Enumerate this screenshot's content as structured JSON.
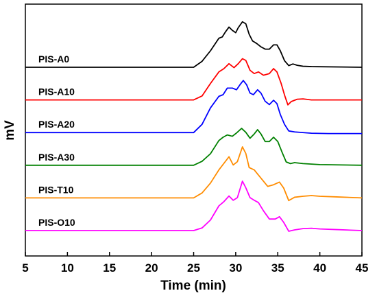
{
  "chart_data": {
    "type": "line",
    "xlabel": "Time (min)",
    "ylabel": "mV",
    "xlim": [
      5,
      45
    ],
    "x_ticks": [
      5,
      10,
      15,
      20,
      25,
      30,
      35,
      40,
      45
    ],
    "y_ticks_shown": false,
    "grid": false,
    "legend": "inline labels left of each trace",
    "series": [
      {
        "name": "PIS-A0",
        "color": "#000000",
        "points": [
          [
            5,
            0.0
          ],
          [
            25,
            0.0
          ],
          [
            26,
            0.18
          ],
          [
            27,
            0.5
          ],
          [
            28,
            0.88
          ],
          [
            28.4,
            0.92
          ],
          [
            28.8,
            1.08
          ],
          [
            29.2,
            1.22
          ],
          [
            29.6,
            1.12
          ],
          [
            30.0,
            1.05
          ],
          [
            30.3,
            1.2
          ],
          [
            30.8,
            1.38
          ],
          [
            31.2,
            1.32
          ],
          [
            31.6,
            1.0
          ],
          [
            32.0,
            0.8
          ],
          [
            32.5,
            0.72
          ],
          [
            33.0,
            0.62
          ],
          [
            33.5,
            0.55
          ],
          [
            34.0,
            0.55
          ],
          [
            34.5,
            0.68
          ],
          [
            34.9,
            0.68
          ],
          [
            35.3,
            0.5
          ],
          [
            35.8,
            0.2
          ],
          [
            36.3,
            0.05
          ],
          [
            36.8,
            0.1
          ],
          [
            37.3,
            0.06
          ],
          [
            38,
            0.03
          ],
          [
            39,
            0.02
          ],
          [
            45,
            0.0
          ]
        ]
      },
      {
        "name": "PIS-A10",
        "color": "#ff0000",
        "points": [
          [
            5,
            0.0
          ],
          [
            25,
            0.0
          ],
          [
            26,
            0.12
          ],
          [
            27,
            0.5
          ],
          [
            28,
            0.85
          ],
          [
            28.6,
            0.95
          ],
          [
            29.2,
            1.1
          ],
          [
            29.8,
            0.98
          ],
          [
            30.3,
            1.1
          ],
          [
            30.8,
            1.25
          ],
          [
            31.2,
            1.2
          ],
          [
            31.7,
            0.9
          ],
          [
            32.2,
            0.8
          ],
          [
            32.7,
            0.85
          ],
          [
            33.3,
            0.75
          ],
          [
            34.0,
            0.8
          ],
          [
            34.5,
            0.95
          ],
          [
            34.9,
            0.85
          ],
          [
            35.4,
            0.5
          ],
          [
            35.8,
            0.15
          ],
          [
            36.2,
            -0.15
          ],
          [
            36.6,
            -0.05
          ],
          [
            37.3,
            0.02
          ],
          [
            38,
            0.03
          ],
          [
            39,
            0.0
          ],
          [
            45,
            0.0
          ]
        ]
      },
      {
        "name": "PIS-A20",
        "color": "#0000ff",
        "points": [
          [
            5,
            0.0
          ],
          [
            25,
            0.0
          ],
          [
            26,
            0.25
          ],
          [
            27,
            0.75
          ],
          [
            28,
            1.1
          ],
          [
            28.5,
            1.15
          ],
          [
            29.0,
            1.35
          ],
          [
            29.6,
            1.35
          ],
          [
            30.1,
            1.3
          ],
          [
            30.5,
            1.45
          ],
          [
            30.9,
            1.58
          ],
          [
            31.3,
            1.45
          ],
          [
            31.7,
            1.2
          ],
          [
            32.1,
            1.15
          ],
          [
            32.6,
            1.3
          ],
          [
            33.0,
            1.2
          ],
          [
            33.5,
            0.95
          ],
          [
            34.0,
            0.85
          ],
          [
            34.5,
            0.98
          ],
          [
            34.9,
            0.88
          ],
          [
            35.3,
            0.55
          ],
          [
            35.8,
            0.25
          ],
          [
            36.3,
            0.05
          ],
          [
            37,
            0.02
          ],
          [
            39,
            -0.02
          ],
          [
            41,
            -0.03
          ],
          [
            45,
            -0.03
          ]
        ]
      },
      {
        "name": "PIS-A30",
        "color": "#008000",
        "points": [
          [
            5,
            0.0
          ],
          [
            25,
            0.0
          ],
          [
            26,
            0.12
          ],
          [
            27,
            0.35
          ],
          [
            28,
            0.75
          ],
          [
            28.5,
            0.85
          ],
          [
            29.0,
            0.92
          ],
          [
            29.6,
            0.88
          ],
          [
            30.1,
            0.98
          ],
          [
            30.7,
            1.12
          ],
          [
            31.2,
            1.0
          ],
          [
            31.7,
            0.82
          ],
          [
            32.2,
            0.95
          ],
          [
            32.6,
            1.08
          ],
          [
            33.0,
            0.95
          ],
          [
            33.5,
            0.72
          ],
          [
            34.0,
            0.72
          ],
          [
            34.5,
            0.85
          ],
          [
            35.0,
            0.72
          ],
          [
            35.5,
            0.4
          ],
          [
            36.0,
            0.1
          ],
          [
            36.5,
            0.05
          ],
          [
            37,
            0.08
          ],
          [
            38,
            0.05
          ],
          [
            40,
            0.02
          ],
          [
            45,
            0.0
          ]
        ]
      },
      {
        "name": "PIS-T10",
        "color": "#ff8c00",
        "points": [
          [
            5,
            0.0
          ],
          [
            25,
            0.0
          ],
          [
            26,
            0.15
          ],
          [
            27,
            0.45
          ],
          [
            28,
            0.85
          ],
          [
            28.6,
            1.05
          ],
          [
            29.2,
            1.25
          ],
          [
            29.7,
            1.0
          ],
          [
            30.2,
            1.1
          ],
          [
            30.8,
            1.55
          ],
          [
            31.2,
            1.35
          ],
          [
            31.6,
            0.92
          ],
          [
            32.2,
            0.85
          ],
          [
            33.0,
            0.6
          ],
          [
            33.8,
            0.35
          ],
          [
            34.5,
            0.4
          ],
          [
            35.2,
            0.48
          ],
          [
            35.7,
            0.3
          ],
          [
            36.3,
            -0.08
          ],
          [
            37,
            0.02
          ],
          [
            38,
            0.05
          ],
          [
            39,
            0.07
          ],
          [
            40,
            0.05
          ],
          [
            42,
            0.03
          ],
          [
            45,
            0.0
          ]
        ]
      },
      {
        "name": "PIS-O10",
        "color": "#ff00ff",
        "points": [
          [
            5,
            0.0
          ],
          [
            25,
            0.0
          ],
          [
            26,
            0.08
          ],
          [
            27,
            0.32
          ],
          [
            28,
            0.75
          ],
          [
            28.6,
            0.88
          ],
          [
            29.2,
            1.05
          ],
          [
            29.7,
            0.92
          ],
          [
            30.2,
            1.0
          ],
          [
            30.8,
            1.5
          ],
          [
            31.2,
            1.3
          ],
          [
            31.7,
            1.0
          ],
          [
            32.2,
            0.92
          ],
          [
            32.7,
            0.85
          ],
          [
            33.3,
            0.6
          ],
          [
            34.0,
            0.35
          ],
          [
            34.7,
            0.35
          ],
          [
            35.2,
            0.42
          ],
          [
            35.7,
            0.25
          ],
          [
            36.3,
            -0.02
          ],
          [
            37,
            0.02
          ],
          [
            38,
            0.06
          ],
          [
            39,
            0.07
          ],
          [
            40,
            0.05
          ],
          [
            42,
            0.03
          ],
          [
            45,
            0.0
          ]
        ]
      }
    ]
  }
}
